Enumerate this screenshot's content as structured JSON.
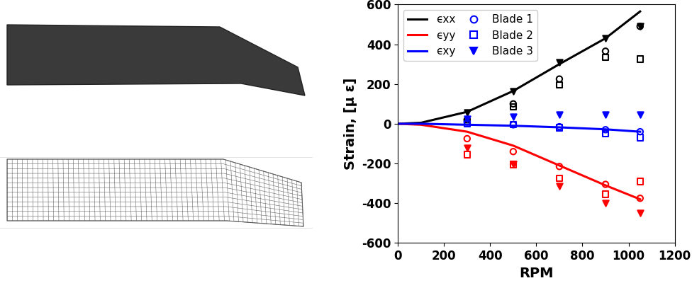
{
  "chart_data": {
    "type": "line",
    "x_label": "RPM",
    "y_label": "Strain, [μ ε]",
    "xlim": [
      0,
      1200
    ],
    "xticks": [
      0,
      200,
      400,
      600,
      800,
      1000,
      1200
    ],
    "ylim": [
      -600,
      600
    ],
    "yticks": [
      -600,
      -400,
      -200,
      0,
      200,
      400,
      600
    ],
    "grid": false,
    "legend": "upper left",
    "x": [
      0,
      100,
      300,
      500,
      700,
      900,
      1050
    ],
    "series": [
      {
        "name": "ϵxx",
        "type": "line",
        "color": "#000000",
        "values": [
          0,
          5,
          60,
          165,
          300,
          430,
          565
        ]
      },
      {
        "name": "ϵyy",
        "type": "line",
        "color": "#ff0000",
        "values": [
          0,
          -5,
          -40,
          -110,
          -210,
          -310,
          -380
        ]
      },
      {
        "name": "ϵxy",
        "type": "line",
        "color": "#0000ff",
        "values": [
          0,
          0,
          -5,
          -10,
          -18,
          -28,
          -40
        ]
      }
    ],
    "blades": [
      {
        "name": "Blade 1",
        "type": "scatter",
        "marker": "circle",
        "color": "#0000ff",
        "x": [
          300,
          500,
          700,
          900,
          1050
        ],
        "ϵxx": [
          20,
          100,
          225,
          365,
          490
        ],
        "ϵyy": [
          -75,
          -140,
          -215,
          -305,
          -375
        ],
        "ϵxy": [
          10,
          -5,
          -15,
          -30,
          -40
        ]
      },
      {
        "name": "Blade 2",
        "type": "scatter",
        "marker": "square",
        "color": "#0000ff",
        "x": [
          300,
          500,
          700,
          900,
          1050
        ],
        "ϵxx": [
          10,
          85,
          195,
          335,
          325
        ],
        "ϵyy": [
          -155,
          -205,
          -275,
          -355,
          -290
        ],
        "ϵxy": [
          0,
          -5,
          -20,
          -50,
          -70
        ]
      },
      {
        "name": "Blade 3",
        "type": "scatter",
        "marker": "triangle_down",
        "color": "#0000ff",
        "x": [
          300,
          500,
          700,
          900,
          1050
        ],
        "ϵxx": [
          55,
          165,
          310,
          430,
          490
        ],
        "ϵyy": [
          -120,
          -205,
          -315,
          -400,
          -450
        ],
        "ϵxy": [
          25,
          35,
          45,
          45,
          45
        ]
      }
    ]
  }
}
